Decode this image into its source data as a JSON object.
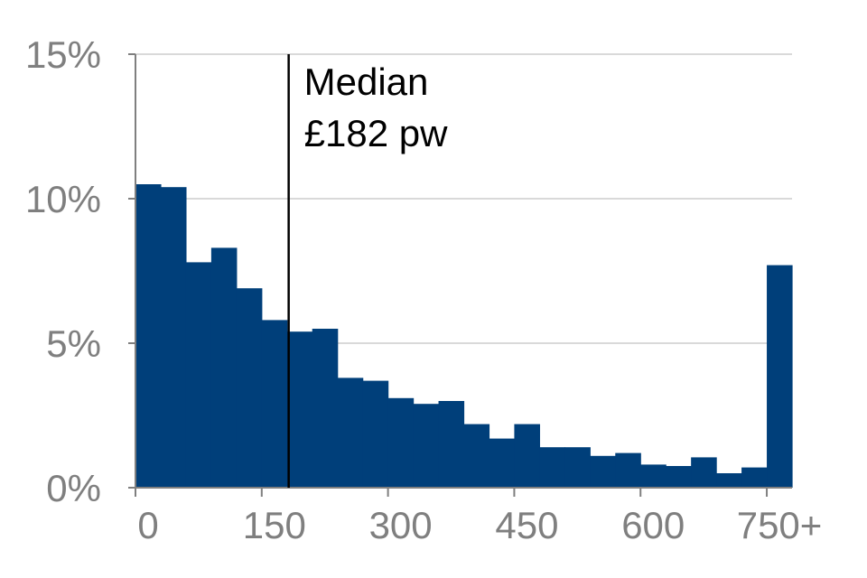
{
  "chart_data": {
    "type": "bar",
    "x_categories_start": [
      0,
      30,
      60,
      90,
      120,
      150,
      180,
      210,
      240,
      270,
      300,
      330,
      360,
      390,
      420,
      450,
      480,
      510,
      540,
      570,
      600,
      630,
      660,
      690,
      720,
      750
    ],
    "values": [
      10.5,
      10.4,
      7.8,
      8.3,
      6.9,
      5.8,
      5.4,
      5.5,
      3.8,
      3.7,
      3.1,
      2.9,
      3.0,
      2.2,
      1.7,
      2.2,
      1.4,
      1.4,
      1.1,
      1.2,
      0.8,
      0.75,
      1.05,
      0.5,
      0.7,
      7.7
    ],
    "x_ticks": [
      "0",
      "150",
      "300",
      "450",
      "600",
      "750+"
    ],
    "x_tick_values": [
      0,
      150,
      300,
      450,
      600,
      750
    ],
    "y_ticks": [
      "0%",
      "5%",
      "10%",
      "15%"
    ],
    "y_tick_values": [
      0,
      5,
      10,
      15
    ],
    "xlim": [
      0,
      780
    ],
    "ylim": [
      0,
      15
    ],
    "bin_width": 30,
    "grid": true,
    "bar_color": "#003f7a",
    "median": {
      "value": 182,
      "label_line1": "Median",
      "label_line2": "£182 pw"
    }
  }
}
